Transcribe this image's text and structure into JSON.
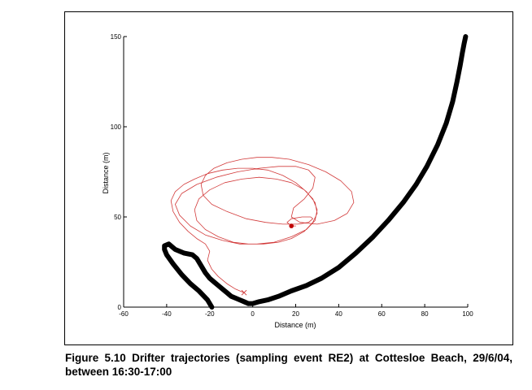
{
  "caption": {
    "label": "Figure 5.10",
    "text": "Drifter trajectories (sampling event RE2) at Cottesloe Beach, 29/6/04, between 16:30-17:00"
  },
  "chart_data": {
    "type": "line",
    "xlabel": "Distance (m)",
    "ylabel": "Distance (m)",
    "xlim": [
      -60,
      100
    ],
    "ylim": [
      0,
      150
    ],
    "xticks": [
      -60,
      -40,
      -20,
      0,
      20,
      40,
      60,
      80,
      100
    ],
    "yticks": [
      0,
      50,
      100,
      150
    ],
    "grid": false,
    "colors": {
      "coastline": "#000000",
      "trajectory": "#d23a3a",
      "start_marker": "#c00000",
      "end_marker": "#d23a3a"
    },
    "series": [
      {
        "role": "coastline-groyne",
        "x": [
          -19,
          -21,
          -25,
          -29,
          -33,
          -37,
          -40,
          -41,
          -41,
          -39,
          -36,
          -32,
          -28,
          -26,
          -24,
          -22,
          -20,
          -18,
          -16,
          -14,
          -12,
          -10,
          -8,
          -6,
          -4,
          -2
        ],
        "y": [
          0,
          4,
          9,
          13,
          18,
          24,
          29,
          32,
          34,
          35,
          32,
          30,
          29,
          27,
          23,
          19,
          16,
          14,
          12,
          10,
          8,
          6,
          5,
          4,
          3,
          2
        ]
      },
      {
        "role": "coastline-beach",
        "x": [
          -2,
          0,
          3,
          7,
          12,
          18,
          25,
          32,
          40,
          48,
          56,
          63,
          70,
          76,
          81,
          86,
          90,
          93,
          95,
          96.5,
          97.5,
          98.3,
          99
        ],
        "y": [
          2,
          2,
          3,
          4,
          6,
          9,
          12,
          16,
          22,
          30,
          39,
          48,
          58,
          68,
          78,
          90,
          102,
          114,
          125,
          134,
          141,
          146,
          150
        ]
      },
      {
        "role": "drifter-trajectory",
        "x": [
          -4,
          -8,
          -12,
          -16,
          -19,
          -21,
          -20,
          -22,
          -26,
          -30,
          -34,
          -37,
          -38,
          -36,
          -32,
          -27,
          -21,
          -14,
          -7,
          0,
          7,
          14,
          20,
          25,
          29,
          30,
          28,
          24,
          18,
          12,
          5,
          -2,
          -9,
          -16,
          -22,
          -26,
          -27,
          -25,
          -20,
          -13,
          -5,
          3,
          11,
          18,
          24,
          28,
          30,
          29,
          25,
          18,
          10,
          2,
          -6,
          -14,
          -22,
          -29,
          -34,
          -36,
          -33,
          -26,
          -17,
          -7,
          3,
          12,
          20,
          26,
          29,
          28,
          24,
          19,
          18,
          22,
          30,
          38,
          44,
          47,
          46,
          41,
          34,
          26,
          17,
          9,
          2,
          -5,
          -12,
          -18,
          -22,
          -24,
          -23,
          -19,
          -12,
          -3,
          6,
          14,
          21,
          26,
          28,
          27,
          23,
          18,
          16,
          17,
          19,
          20,
          19,
          18
        ],
        "y": [
          8,
          10,
          13,
          17,
          21,
          26,
          31,
          35,
          38,
          42,
          47,
          53,
          59,
          64,
          68,
          71,
          74,
          76,
          77,
          77,
          76,
          73,
          69,
          64,
          58,
          52,
          47,
          42,
          38,
          36,
          35,
          35,
          36,
          39,
          43,
          48,
          54,
          60,
          65,
          69,
          71,
          72,
          71,
          69,
          65,
          60,
          54,
          48,
          43,
          39,
          36,
          35,
          35,
          37,
          40,
          45,
          51,
          57,
          63,
          68,
          72,
          75,
          77,
          78,
          78,
          76,
          72,
          66,
          60,
          55,
          50,
          47,
          46,
          48,
          52,
          58,
          64,
          70,
          75,
          79,
          82,
          83,
          83,
          82,
          80,
          77,
          73,
          68,
          62,
          57,
          53,
          49,
          47,
          46,
          46,
          47,
          49,
          50,
          50,
          49,
          47,
          46,
          45,
          45,
          45,
          45
        ]
      }
    ],
    "start_point": {
      "x": 18,
      "y": 45
    },
    "end_point": {
      "x": -4,
      "y": 8
    }
  }
}
